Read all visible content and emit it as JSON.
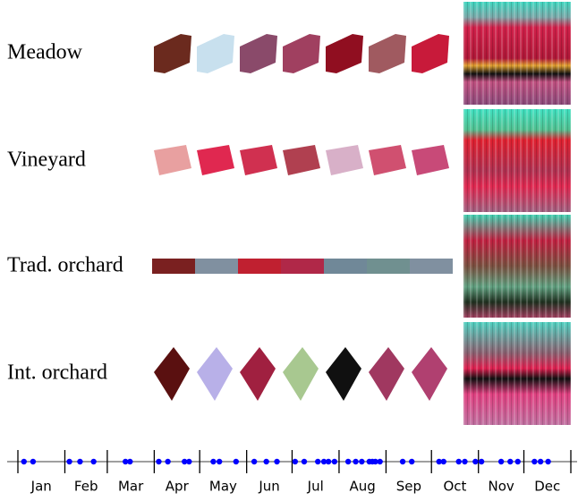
{
  "rows": [
    {
      "label": "Meadow"
    },
    {
      "label": "Vineyard"
    },
    {
      "label": "Trad. orchard"
    },
    {
      "label": "Int. orchard"
    }
  ],
  "timeline": {
    "months": [
      "Jan",
      "Feb",
      "Mar",
      "Apr",
      "May",
      "Jun",
      "Jul",
      "Aug",
      "Sep",
      "Oct",
      "Nov",
      "Dec"
    ],
    "xlim": [
      0,
      365
    ],
    "xticks": [
      0,
      31,
      59,
      90,
      120,
      151,
      181,
      212,
      243,
      273,
      304,
      334,
      365
    ],
    "observations": [
      4,
      10,
      34,
      41,
      50,
      71,
      74,
      93,
      99,
      110,
      113,
      129,
      133,
      144,
      156,
      164,
      171,
      183,
      189,
      198,
      202,
      205,
      209,
      218,
      223,
      227,
      232,
      234,
      236,
      239,
      254,
      260,
      278,
      281,
      291,
      295,
      302,
      306,
      319,
      325,
      330,
      341,
      345,
      350
    ],
    "color": "#0000ff"
  }
}
